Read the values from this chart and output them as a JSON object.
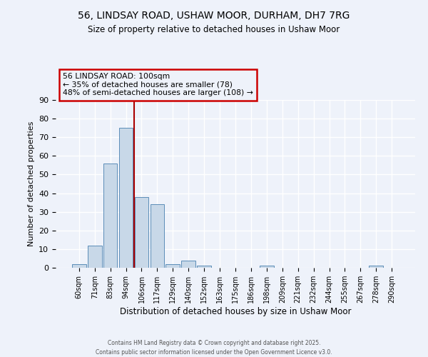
{
  "title": "56, LINDSAY ROAD, USHAW MOOR, DURHAM, DH7 7RG",
  "subtitle": "Size of property relative to detached houses in Ushaw Moor",
  "xlabel": "Distribution of detached houses by size in Ushaw Moor",
  "ylabel": "Number of detached properties",
  "categories": [
    "60sqm",
    "71sqm",
    "83sqm",
    "94sqm",
    "106sqm",
    "117sqm",
    "129sqm",
    "140sqm",
    "152sqm",
    "163sqm",
    "175sqm",
    "186sqm",
    "198sqm",
    "209sqm",
    "221sqm",
    "232sqm",
    "244sqm",
    "255sqm",
    "267sqm",
    "278sqm",
    "290sqm"
  ],
  "values": [
    2,
    12,
    56,
    75,
    38,
    34,
    2,
    4,
    1,
    0,
    0,
    0,
    1,
    0,
    0,
    0,
    0,
    0,
    0,
    1,
    0
  ],
  "bar_color": "#c8d8e8",
  "bar_edge_color": "#5b8db8",
  "ylim": [
    0,
    90
  ],
  "yticks": [
    0,
    10,
    20,
    30,
    40,
    50,
    60,
    70,
    80,
    90
  ],
  "vline_x_index": 3,
  "vline_color": "#aa0000",
  "annotation_title": "56 LINDSAY ROAD: 100sqm",
  "annotation_line1": "← 35% of detached houses are smaller (78)",
  "annotation_line2": "48% of semi-detached houses are larger (108) →",
  "annotation_box_color": "#cc0000",
  "background_color": "#eef2fa",
  "grid_color": "#ffffff",
  "footer1": "Contains HM Land Registry data © Crown copyright and database right 2025.",
  "footer2": "Contains public sector information licensed under the Open Government Licence v3.0."
}
